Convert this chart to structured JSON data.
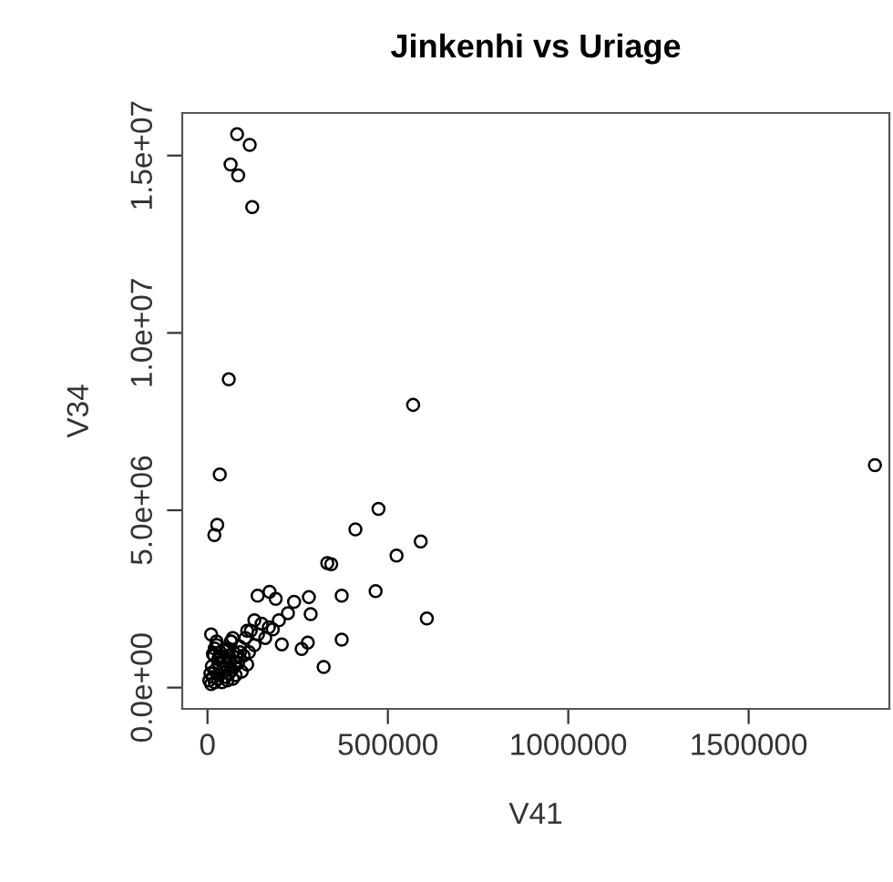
{
  "chart_data": {
    "type": "scatter",
    "title": "Jinkenhi vs Uriage",
    "xlabel": "V41",
    "ylabel": "V34",
    "x": [
      82000,
      117000,
      64000,
      85000,
      124000,
      59000,
      570000,
      34000,
      27000,
      19000,
      474000,
      410000,
      591000,
      524000,
      332000,
      343000,
      372000,
      466000,
      608000,
      372000,
      322000,
      278000,
      261000,
      139000,
      172000,
      189000,
      281000,
      286000,
      240000,
      223000,
      198000,
      181000,
      206000,
      1850000,
      5000,
      8000,
      10000,
      12000,
      15000,
      18000,
      20000,
      22000,
      25000,
      28000,
      30000,
      32000,
      35000,
      40000,
      45000,
      50000,
      52000,
      55000,
      58000,
      60000,
      62000,
      65000,
      68000,
      70000,
      72000,
      75000,
      78000,
      80000,
      85000,
      90000,
      95000,
      100000,
      105000,
      110000,
      115000,
      120000,
      130000,
      140000,
      150000,
      160000,
      170000,
      10000,
      20000,
      30000,
      50000,
      70000,
      25000,
      35000,
      45000,
      55000,
      15000,
      65000,
      90000,
      110000,
      130000
    ],
    "values": [
      15600000,
      15300000,
      14750000,
      14440000,
      13550000,
      8690000,
      7970000,
      6010000,
      4590000,
      4300000,
      5040000,
      4460000,
      4120000,
      3720000,
      3510000,
      3480000,
      2590000,
      2720000,
      1950000,
      1350000,
      580000,
      1270000,
      1090000,
      2590000,
      2700000,
      2500000,
      2550000,
      2070000,
      2420000,
      2100000,
      1900000,
      1640000,
      1220000,
      6270000,
      200000,
      400000,
      100000,
      600000,
      300000,
      900000,
      150000,
      500000,
      1200000,
      250000,
      700000,
      350000,
      1000000,
      150000,
      550000,
      1100000,
      650000,
      200000,
      900000,
      400000,
      750000,
      1300000,
      500000,
      250000,
      1000000,
      600000,
      350000,
      850000,
      700000,
      1150000,
      450000,
      900000,
      1400000,
      650000,
      1000000,
      1600000,
      1200000,
      1500000,
      1800000,
      1400000,
      1700000,
      1500000,
      1100000,
      800000,
      300000,
      1400000,
      1300000,
      900000,
      750000,
      1050000,
      950000,
      1300000,
      1000000,
      1600000,
      1900000
    ],
    "color": "#000000",
    "marker": "circle",
    "grid": false,
    "xlim": [
      -70000,
      1890000
    ],
    "ylim": [
      -600000,
      16200000
    ],
    "xticks": [
      0,
      500000,
      1000000,
      1500000
    ],
    "yticks": [
      {
        "value": 0,
        "label": "0.0e+00"
      },
      {
        "value": 5000000,
        "label": "5.0e+06"
      },
      {
        "value": 10000000,
        "label": "1.0e+07"
      },
      {
        "value": 15000000,
        "label": "1.5e+07"
      }
    ]
  }
}
